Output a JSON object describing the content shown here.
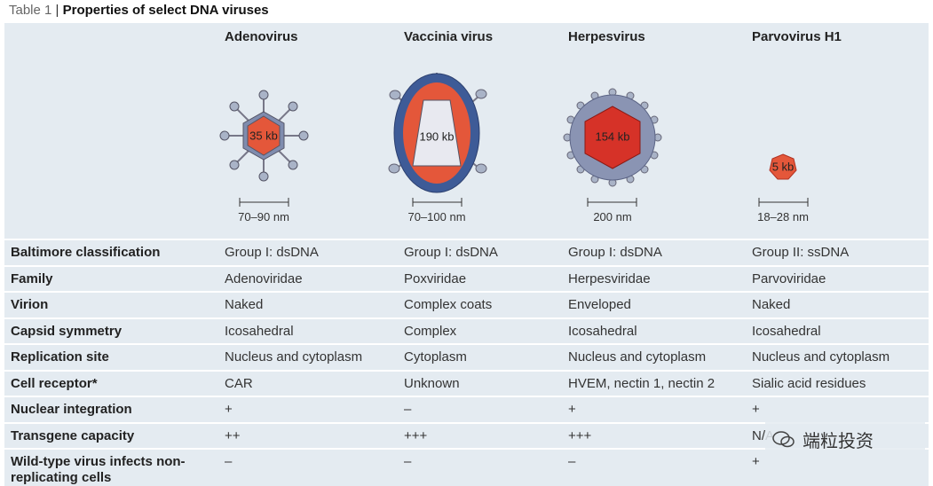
{
  "header": {
    "label": "Table 1",
    "title": "Properties of select DNA viruses"
  },
  "columns": [
    {
      "name": "Adenovirus",
      "genome": "35 kb",
      "size": "70–90 nm"
    },
    {
      "name": "Vaccinia virus",
      "genome": "190 kb",
      "size": "70–100 nm"
    },
    {
      "name": "Herpesvirus",
      "genome": "154 kb",
      "size": "200 nm"
    },
    {
      "name": "Parvovirus H1",
      "genome": "5 kb",
      "size": "18–28 nm"
    }
  ],
  "table": {
    "rows": [
      [
        "Baltimore classification",
        "Group I: dsDNA",
        "Group I: dsDNA",
        "Group I: dsDNA",
        "Group II: ssDNA"
      ],
      [
        "Family",
        "Adenoviridae",
        "Poxviridae",
        "Herpesviridae",
        "Parvoviridae"
      ],
      [
        "Virion",
        "Naked",
        "Complex coats",
        "Enveloped",
        "Naked"
      ],
      [
        "Capsid symmetry",
        "Icosahedral",
        "Complex",
        "Icosahedral",
        "Icosahedral"
      ],
      [
        "Replication site",
        "Nucleus and cytoplasm",
        "Cytoplasm",
        "Nucleus and cytoplasm",
        "Nucleus and cytoplasm"
      ],
      [
        "Cell receptor*",
        "CAR",
        "Unknown",
        "HVEM, nectin 1, nectin 2",
        "Sialic acid residues"
      ],
      [
        "Nuclear integration",
        "+",
        "–",
        "+",
        "+"
      ],
      [
        "Transgene capacity",
        "++",
        "+++",
        "+++",
        "N/A"
      ],
      [
        "Wild-type virus infects non-replicating cells",
        "–",
        "–",
        "–",
        "+"
      ]
    ]
  },
  "watermark": "端粒投资"
}
